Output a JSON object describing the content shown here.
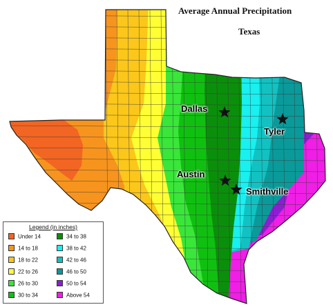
{
  "title": "Average Annual Precipitation",
  "subtitle": "Texas",
  "cities": [
    {
      "name": "Dallas"
    },
    {
      "name": "Tyler"
    },
    {
      "name": "Austin"
    },
    {
      "name": "Smithville"
    }
  ],
  "legend": {
    "title": "Legend (in inches)",
    "items": [
      {
        "label": "Under 14",
        "color": "#f26522"
      },
      {
        "label": "14 to 18",
        "color": "#f7941d"
      },
      {
        "label": "18 to 22",
        "color": "#fbc71b"
      },
      {
        "label": "22 to 26",
        "color": "#ffff33"
      },
      {
        "label": "26 to 30",
        "color": "#39e639"
      },
      {
        "label": "30 to 34",
        "color": "#10c010"
      },
      {
        "label": "34 to 38",
        "color": "#0a8f0a"
      },
      {
        "label": "38 to 42",
        "color": "#19f0f0"
      },
      {
        "label": "42 to 46",
        "color": "#12c2c2"
      },
      {
        "label": "46 to 50",
        "color": "#0a9a9a"
      },
      {
        "label": "50 to 54",
        "color": "#8b1fd0"
      },
      {
        "label": "Above 54",
        "color": "#f01ee6"
      }
    ]
  },
  "colors": {
    "county_lines": "#3a3a3a",
    "state_outline": "#222222",
    "star": "#111111"
  }
}
